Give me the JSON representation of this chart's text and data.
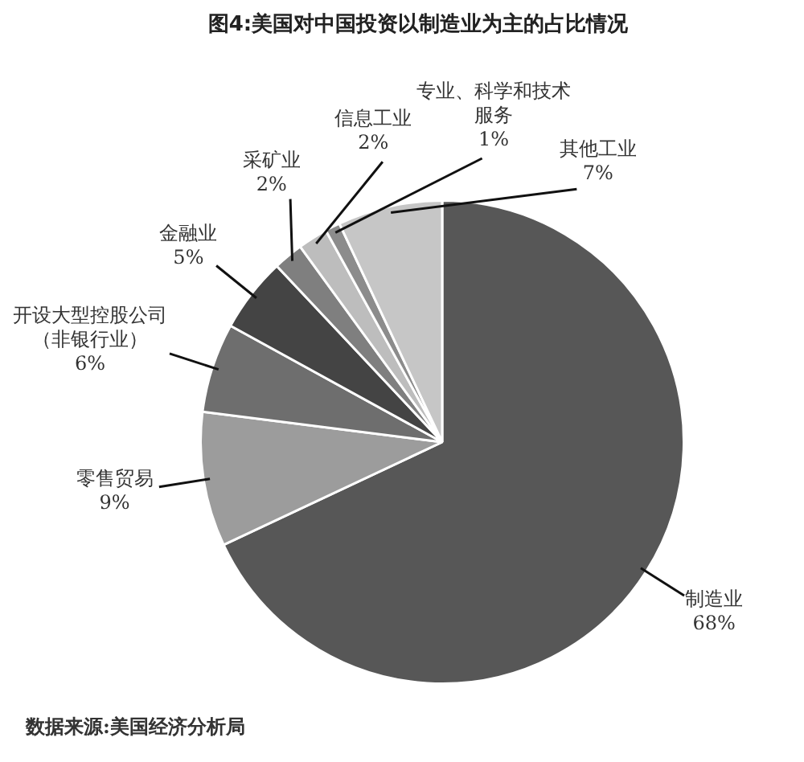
{
  "chart_data": {
    "type": "pie",
    "title": "图4:美国对中国投资以制造业为主的占比情况",
    "categories": [
      "制造业",
      "零售贸易",
      "开设大型控股公司（非银行业）",
      "金融业",
      "采矿业",
      "信息工业",
      "专业、科学和技术服务",
      "其他工业"
    ],
    "values": [
      68,
      9,
      6,
      5,
      2,
      2,
      1,
      7
    ],
    "value_labels": [
      "68%",
      "9%",
      "6%",
      "5%",
      "2%",
      "2%",
      "1%",
      "7%"
    ],
    "colors": [
      "#575757",
      "#9c9c9c",
      "#6e6e6e",
      "#444444",
      "#7f7f7f",
      "#bdbdbd",
      "#8c8c8c",
      "#c6c6c6"
    ],
    "legend": false,
    "annotations": [
      "数据来源:美国经济分析局"
    ]
  }
}
